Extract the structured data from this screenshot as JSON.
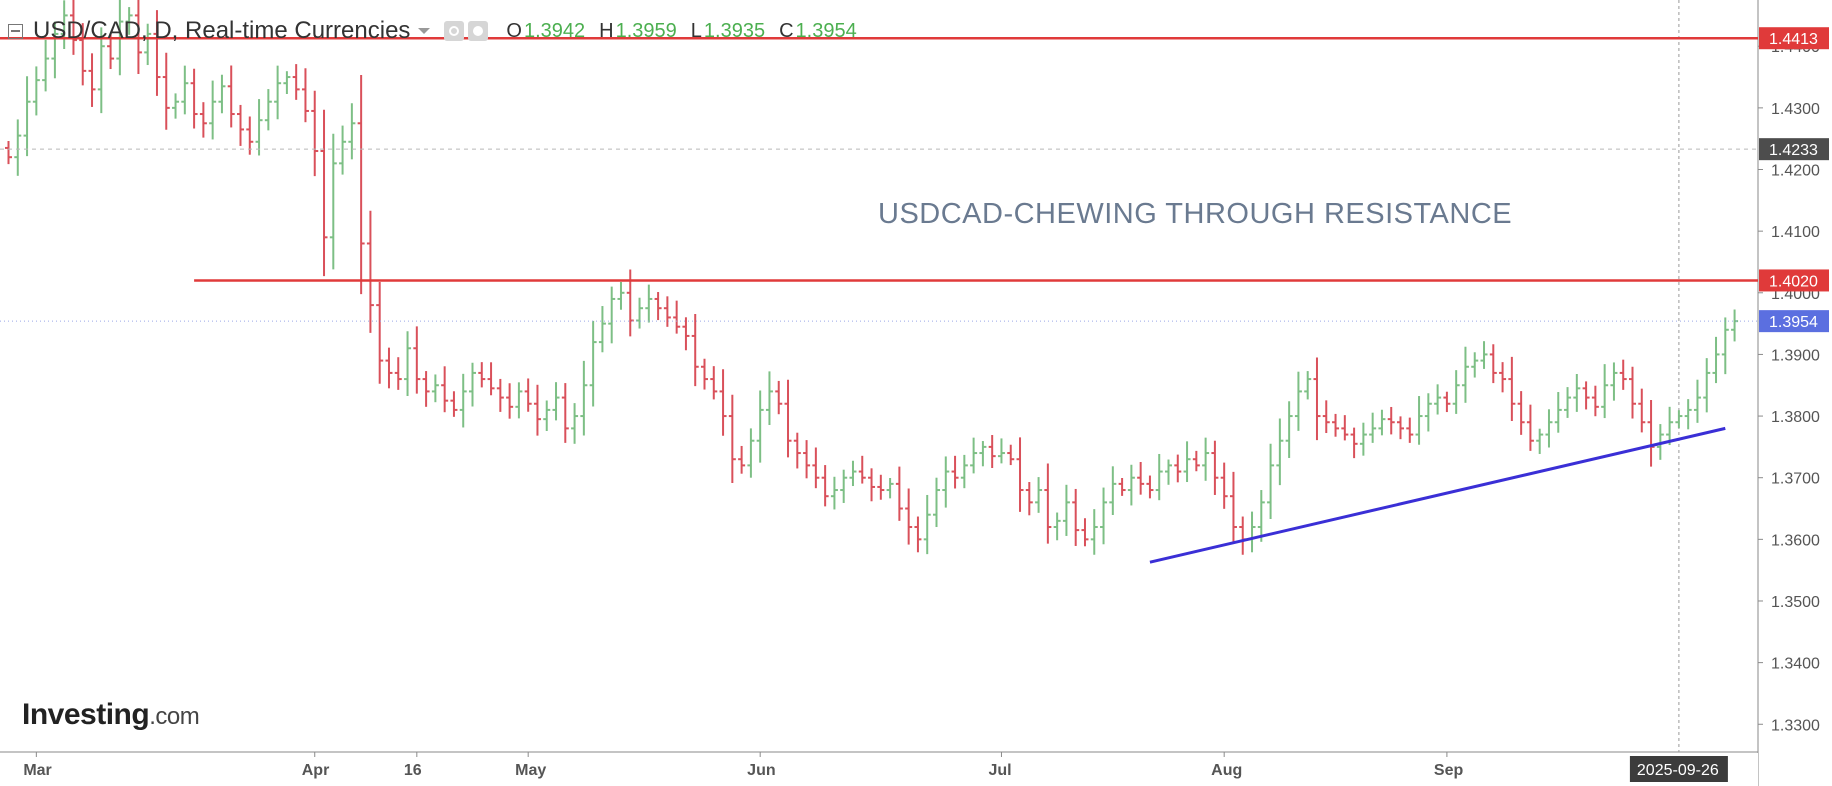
{
  "header": {
    "title": "USD/CAD, D, Real-time Currencies",
    "open_label": "O",
    "open": "1.3942",
    "high_label": "H",
    "high": "1.3959",
    "low_label": "L",
    "low": "1.3935",
    "close_label": "C",
    "close": "1.3954",
    "icons": [
      "collapse-icon",
      "dropdown-caret-icon",
      "eye-icon",
      "gear-icon"
    ]
  },
  "logo": {
    "brand": "Investing",
    "suffix": ".com"
  },
  "annotation": "USDCAD-CHEWING THROUGH RESISTANCE",
  "colors": {
    "up": "#7dbf85",
    "down": "#d9505a",
    "level_line": "#e03a3a",
    "trendline": "#3a2fd6",
    "current_price": "#5b6fe0",
    "annotation_text": "#6a7a90",
    "axis_text": "#555555"
  },
  "chart_data": {
    "type": "ohlc",
    "symbol": "USD/CAD",
    "timeframe": "D",
    "title": "USDCAD-CHEWING THROUGH RESISTANCE",
    "xlabel": "",
    "ylabel": "",
    "ylim": [
      1.3255,
      1.4475
    ],
    "y_ticks": [
      "1.3300",
      "1.3400",
      "1.3500",
      "1.3600",
      "1.3700",
      "1.3800",
      "1.3900",
      "1.4000",
      "1.4100",
      "1.4200",
      "1.4300",
      "1.4400"
    ],
    "x_ticks": [
      {
        "label": "Mar",
        "bar": 3
      },
      {
        "label": "Apr",
        "bar": 33
      },
      {
        "label": "16",
        "bar": 44
      },
      {
        "label": "May",
        "bar": 56
      },
      {
        "label": "Jun",
        "bar": 81
      },
      {
        "label": "Jul",
        "bar": 107
      },
      {
        "label": "Aug",
        "bar": 131
      },
      {
        "label": "Sep",
        "bar": 155
      }
    ],
    "date_marker": {
      "label": "2025-09-26",
      "bar": 180
    },
    "levels": [
      {
        "price": 1.4413,
        "label": "1.4413",
        "style": "resistance",
        "from_bar": -1
      },
      {
        "price": 1.4233,
        "label": "1.4233",
        "style": "dashed"
      },
      {
        "price": 1.402,
        "label": "1.4020",
        "style": "resistance",
        "from_bar": 20
      },
      {
        "price": 1.3954,
        "label": "1.3954",
        "style": "current"
      }
    ],
    "trendline": [
      {
        "bar": 123,
        "price": 1.3563
      },
      {
        "bar": 185,
        "price": 1.378
      }
    ],
    "grid": false,
    "last_close": 1.3954,
    "closes": [
      1.422,
      1.4255,
      1.431,
      1.4345,
      1.438,
      1.442,
      1.445,
      1.441,
      1.436,
      1.433,
      1.44,
      1.438,
      1.444,
      1.445,
      1.439,
      1.442,
      1.435,
      1.43,
      1.431,
      1.434,
      1.429,
      1.4275,
      1.431,
      1.4335,
      1.429,
      1.4265,
      1.4245,
      1.428,
      1.431,
      1.434,
      1.435,
      1.433,
      1.4295,
      1.423,
      1.409,
      1.421,
      1.4245,
      1.4275,
      1.408,
      1.398,
      1.389,
      1.387,
      1.386,
      1.391,
      1.386,
      1.384,
      1.385,
      1.3825,
      1.381,
      1.384,
      1.387,
      1.386,
      1.3845,
      1.383,
      1.3815,
      1.384,
      1.382,
      1.3795,
      1.381,
      1.383,
      1.378,
      1.38,
      1.385,
      1.392,
      1.395,
      1.399,
      1.4,
      1.3955,
      1.3975,
      1.399,
      1.3975,
      1.396,
      1.3945,
      1.393,
      1.388,
      1.386,
      1.384,
      1.38,
      1.373,
      1.372,
      1.376,
      1.381,
      1.384,
      1.382,
      1.376,
      1.374,
      1.372,
      1.37,
      1.367,
      1.368,
      1.37,
      1.371,
      1.37,
      1.3685,
      1.368,
      1.369,
      1.365,
      1.362,
      1.36,
      1.364,
      1.368,
      1.371,
      1.37,
      1.372,
      1.374,
      1.375,
      1.3735,
      1.374,
      1.373,
      1.368,
      1.366,
      1.368,
      1.362,
      1.363,
      1.366,
      1.3615,
      1.36,
      1.362,
      1.366,
      1.369,
      1.368,
      1.37,
      1.369,
      1.368,
      1.371,
      1.372,
      1.371,
      1.373,
      1.372,
      1.374,
      1.37,
      1.367,
      1.362,
      1.36,
      1.362,
      1.366,
      1.372,
      1.376,
      1.38,
      1.384,
      1.386,
      1.38,
      1.379,
      1.378,
      1.377,
      1.3755,
      1.377,
      1.378,
      1.3795,
      1.379,
      1.378,
      1.377,
      1.38,
      1.382,
      1.383,
      1.382,
      1.385,
      1.388,
      1.389,
      1.39,
      1.387,
      1.386,
      1.382,
      1.379,
      1.376,
      1.377,
      1.379,
      1.381,
      1.383,
      1.3845,
      1.383,
      1.3815,
      1.385,
      1.387,
      1.386,
      1.382,
      1.379,
      1.375,
      1.377,
      1.379,
      1.38,
      1.381,
      1.383,
      1.387,
      1.39,
      1.394,
      1.3954
    ]
  }
}
